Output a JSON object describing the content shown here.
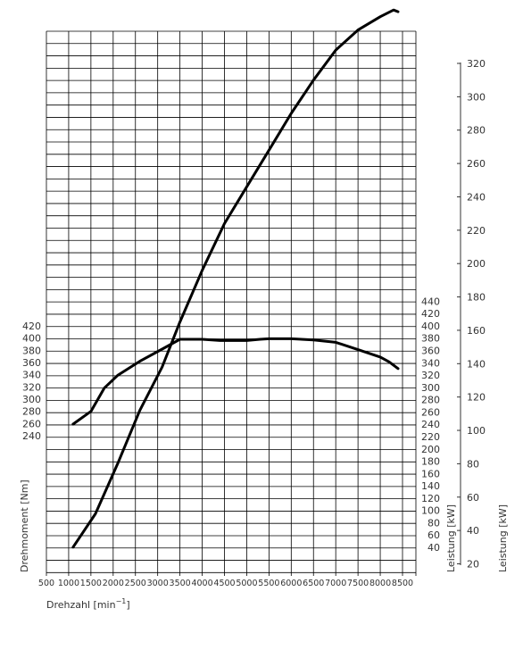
{
  "chart_data": {
    "type": "line",
    "x": {
      "label": "Drehzahl [min",
      "label_sup": "−1",
      "label_end": "]",
      "ticks": [
        500,
        1000,
        1500,
        2000,
        2500,
        3000,
        3500,
        4000,
        4500,
        5000,
        5500,
        6000,
        6500,
        7000,
        7500,
        8000,
        8500
      ],
      "range": [
        500,
        8500
      ]
    },
    "y_torque": {
      "label": "Drehmoment [Nm]",
      "ticks": [
        240,
        260,
        280,
        300,
        320,
        340,
        360,
        380,
        400,
        420
      ],
      "range": [
        240,
        420
      ]
    },
    "y_power_hp": {
      "label": "Leistung [kW]",
      "ticks": [
        40,
        60,
        80,
        100,
        120,
        140,
        160,
        180,
        200,
        220,
        240,
        260,
        280,
        300,
        320,
        340,
        360,
        380,
        400,
        420,
        440
      ]
    },
    "y_power_kw": {
      "label": "Leistung [kW]",
      "ticks": [
        20,
        40,
        60,
        80,
        100,
        120,
        140,
        160,
        180,
        200,
        220,
        240,
        260,
        280,
        300,
        320
      ],
      "range": [
        20,
        320
      ]
    },
    "grid": true,
    "series": [
      {
        "axis": "torque",
        "x": [
          1100,
          1500,
          1800,
          2100,
          2600,
          3100,
          3500,
          4000,
          4400,
          4600,
          5000,
          5300,
          5500,
          6000,
          6500,
          7000,
          7500,
          8000,
          8200,
          8400
        ],
        "values": [
          259,
          280,
          318,
          339,
          362,
          382,
          398,
          398,
          396,
          396,
          396,
          398,
          399,
          399,
          397,
          393,
          381,
          369,
          361,
          350
        ]
      },
      {
        "axis": "power_kw",
        "x": [
          1100,
          1600,
          2100,
          2600,
          3100,
          3500,
          4000,
          4500,
          5000,
          5500,
          6000,
          6500,
          7000,
          7500,
          8000,
          8300,
          8400
        ],
        "values": [
          30,
          50,
          80,
          112,
          138,
          165,
          196,
          224,
          246,
          268,
          290,
          310,
          328,
          340,
          348,
          352,
          351
        ]
      }
    ]
  }
}
